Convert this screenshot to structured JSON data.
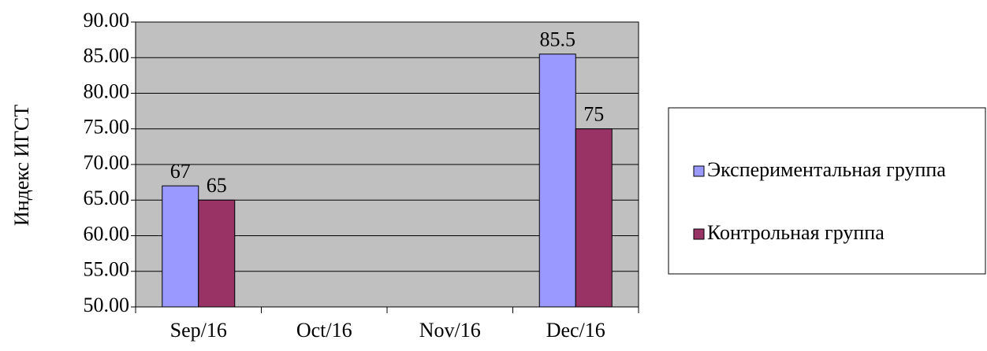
{
  "chart_data": {
    "type": "bar",
    "y_label": "Индекс ИГСТ",
    "categories": [
      "Sep/16",
      "Oct/16",
      "Nov/16",
      "Dec/16"
    ],
    "series": [
      {
        "name": "Экспериментальная группа",
        "color": "#9999ff",
        "values": [
          67,
          null,
          null,
          85.5
        ]
      },
      {
        "name": "Контрольная группа",
        "color": "#993366",
        "values": [
          65,
          null,
          null,
          75
        ]
      }
    ],
    "ylim": [
      50,
      90
    ],
    "yticks": [
      {
        "value": 50,
        "label": "50.00"
      },
      {
        "value": 55,
        "label": "55.00"
      },
      {
        "value": 60,
        "label": "60.00"
      },
      {
        "value": 65,
        "label": "65.00"
      },
      {
        "value": 70,
        "label": "70.00"
      },
      {
        "value": 75,
        "label": "75.00"
      },
      {
        "value": 80,
        "label": "80.00"
      },
      {
        "value": 85,
        "label": "85.00"
      },
      {
        "value": 90,
        "label": "90.00"
      }
    ],
    "grid": true,
    "plot_background": "#c0c0c0",
    "legend": "right"
  }
}
